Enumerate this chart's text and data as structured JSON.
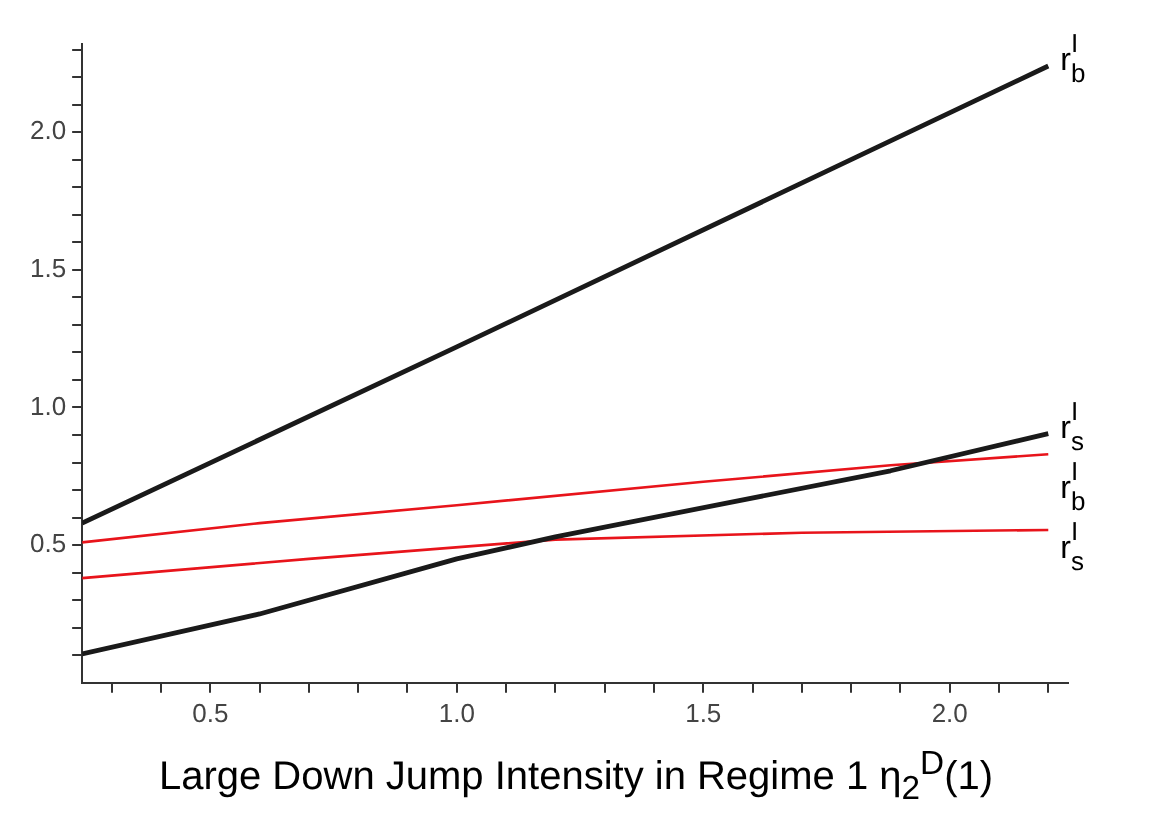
{
  "chart_data": {
    "type": "line",
    "xlabel": "Large Down Jump Intensity in Regime 1 η$_{2}$$^{D}$(1)",
    "xlim": [
      0.24,
      2.24
    ],
    "ylim": [
      0,
      2.32
    ],
    "xticks": [
      {
        "value": 0.3,
        "label": null
      },
      {
        "value": 0.4,
        "label": null
      },
      0.5,
      {
        "value": 0.6,
        "label": null
      },
      {
        "value": 0.7,
        "label": null
      },
      {
        "value": 0.8,
        "label": null
      },
      {
        "value": 0.9,
        "label": null
      },
      {
        "value": 1,
        "label": "1.0"
      },
      {
        "value": 1.1,
        "label": null
      },
      {
        "value": 1.2,
        "label": null
      },
      {
        "value": 1.3,
        "label": null
      },
      {
        "value": 1.4,
        "label": null
      },
      1.5,
      {
        "value": 1.6,
        "label": null
      },
      {
        "value": 1.7,
        "label": null
      },
      {
        "value": 1.8,
        "label": null
      },
      {
        "value": 1.9,
        "label": null
      },
      {
        "value": 2,
        "label": "2.0"
      },
      {
        "value": 2.1,
        "label": null
      },
      {
        "value": 2.2,
        "label": null
      }
    ],
    "yticks": [
      {
        "value": 0.1,
        "label": null
      },
      {
        "value": 0.2,
        "label": null
      },
      {
        "value": 0.3,
        "label": null
      },
      {
        "value": 0.4,
        "label": null
      },
      0.5,
      {
        "value": 0.6,
        "label": null
      },
      {
        "value": 0.7,
        "label": null
      },
      {
        "value": 0.8,
        "label": null
      },
      {
        "value": 0.9,
        "label": null
      },
      {
        "value": 1,
        "label": "1.0"
      },
      {
        "value": 1.1,
        "label": null
      },
      {
        "value": 1.2,
        "label": null
      },
      {
        "value": 1.3,
        "label": null
      },
      {
        "value": 1.4,
        "label": null
      },
      1.5,
      {
        "value": 1.6,
        "label": null
      },
      {
        "value": 1.7,
        "label": null
      },
      {
        "value": 1.8,
        "label": null
      },
      {
        "value": 1.9,
        "label": null
      },
      {
        "value": 2,
        "label": "2.0"
      },
      {
        "value": 2.1,
        "label": null
      },
      {
        "value": 2.2,
        "label": null
      },
      {
        "value": 2.3,
        "label": null
      }
    ],
    "grid": false,
    "legend": false,
    "marker": "none",
    "line_style": "solid",
    "series": [
      {
        "name": "r$_{b}$$^{I}$",
        "color": "#1a1a1a",
        "x": [
          0.24,
          1.0,
          2.2
        ],
        "values": [
          0.58,
          1.22,
          2.24
        ]
      },
      {
        "name": "r$_{s}$$^{I}$",
        "color": "#1a1a1a",
        "x": [
          0.24,
          0.6,
          1.0,
          1.2,
          1.88,
          2.2
        ],
        "values": [
          0.105,
          0.25,
          0.45,
          0.53,
          0.77,
          0.905
        ]
      },
      {
        "name": "r$_{b}$$^{I}$",
        "color": "#e8141b",
        "x": [
          0.24,
          0.6,
          1.0,
          1.5,
          1.88,
          2.2
        ],
        "values": [
          0.51,
          0.58,
          0.645,
          0.73,
          0.79,
          0.83
        ]
      },
      {
        "name": "r$_{s}$$^{I}$",
        "color": "#e8141b",
        "x": [
          0.24,
          0.7,
          1.2,
          1.7,
          2.2
        ],
        "values": [
          0.38,
          0.45,
          0.52,
          0.545,
          0.555
        ]
      }
    ]
  }
}
